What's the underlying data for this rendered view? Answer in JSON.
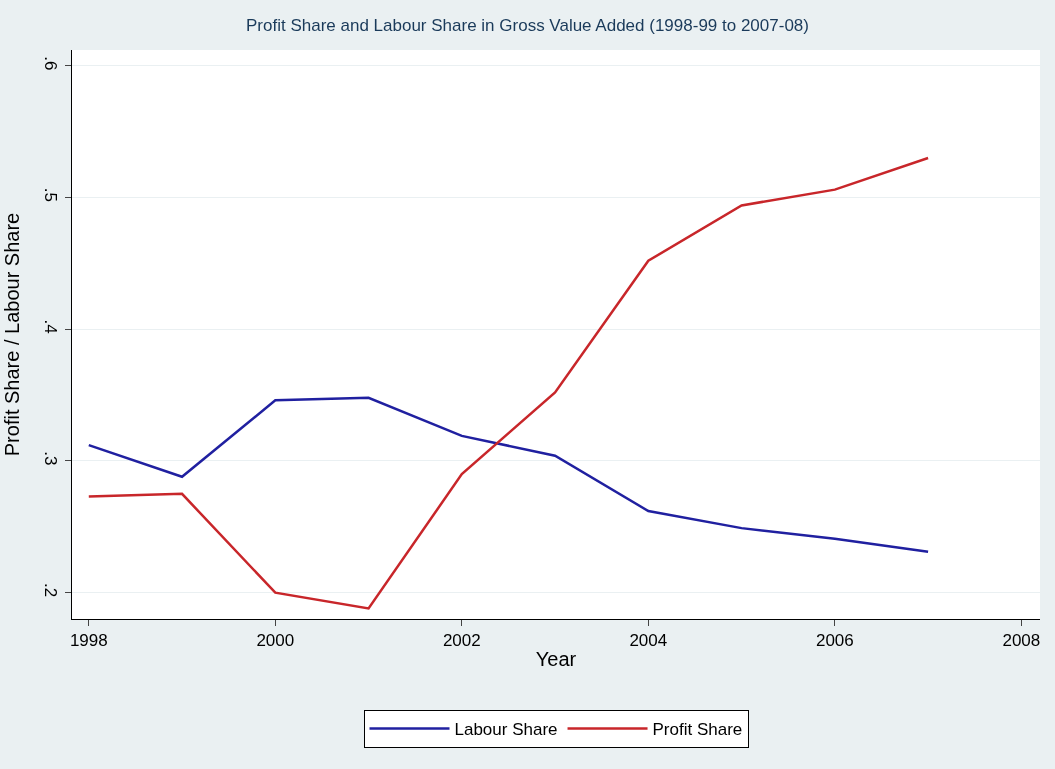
{
  "chart_data": {
    "type": "line",
    "title": "Profit Share and Labour Share in Gross Value Added (1998-99 to 2007-08)",
    "xlabel": "Year",
    "ylabel": "Profit Share / Labour Share",
    "x": [
      1998,
      1999,
      2000,
      2001,
      2002,
      2003,
      2004,
      2005,
      2006,
      2007
    ],
    "series": [
      {
        "name": "Labour Share",
        "color": "#2020a0",
        "values": [
          0.312,
          0.288,
          0.346,
          0.348,
          0.319,
          0.304,
          0.262,
          0.249,
          0.241,
          0.231
        ]
      },
      {
        "name": "Profit Share",
        "color": "#c8262a",
        "values": [
          0.273,
          0.275,
          0.2,
          0.188,
          0.29,
          0.352,
          0.452,
          0.494,
          0.506,
          0.53
        ]
      }
    ],
    "xlim": [
      1997.82,
      2008.2
    ],
    "xticks": [
      1998,
      2000,
      2002,
      2004,
      2006,
      2008
    ],
    "ylim": [
      0.18,
      0.612
    ],
    "yticks": [
      {
        "value": 0.2,
        "label": ".2"
      },
      {
        "value": 0.3,
        "label": ".3"
      },
      {
        "value": 0.4,
        "label": ".4"
      },
      {
        "value": 0.5,
        "label": ".5"
      },
      {
        "value": 0.6,
        "label": ".6"
      }
    ],
    "grid": "y",
    "legend": "bottom",
    "marker": "none",
    "line_style": "solid"
  }
}
